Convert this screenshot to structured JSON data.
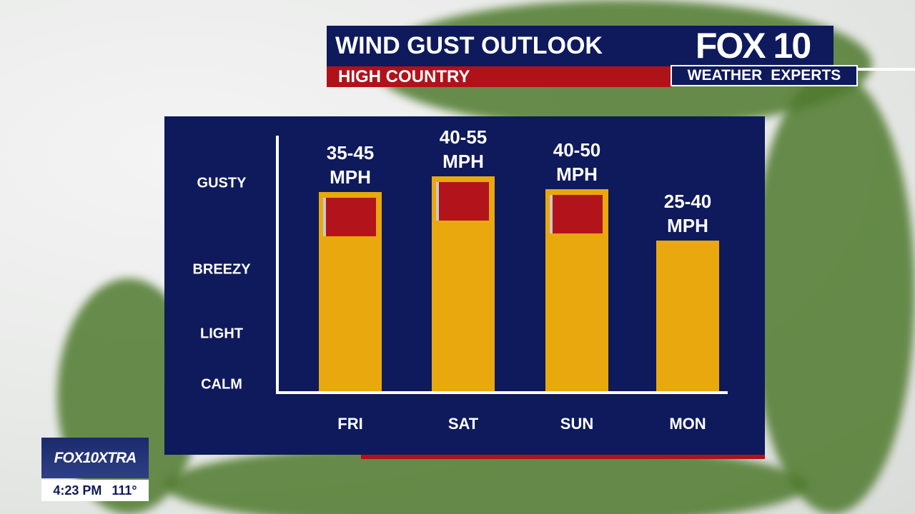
{
  "chart_data": {
    "type": "bar",
    "title": "WIND GUST OUTLOOK",
    "subtitle": "HIGH COUNTRY",
    "categories": [
      "FRI",
      "SAT",
      "SUN",
      "MON"
    ],
    "values": [
      78,
      84,
      79,
      59
    ],
    "annotations": [
      "35-45 MPH",
      "40-55 MPH",
      "40-50 MPH",
      "25-40 MPH"
    ],
    "red_flag": [
      true,
      true,
      true,
      false
    ],
    "color": "#e9a80e",
    "ylim": [
      0,
      100
    ],
    "yticks": [
      {
        "value": 1,
        "label": "CALM"
      },
      {
        "value": 21,
        "label": "LIGHT"
      },
      {
        "value": 46,
        "label": "BREEZY"
      },
      {
        "value": 80,
        "label": "GUSTY"
      }
    ],
    "grid": false
  },
  "branding": {
    "logo": "FOX 10",
    "tag_left": "WEATHER",
    "tag_right": "EXPERTS"
  },
  "ticker": {
    "channel": "FOX10XTRA",
    "time": "4:23 PM",
    "temperature": "111°"
  }
}
